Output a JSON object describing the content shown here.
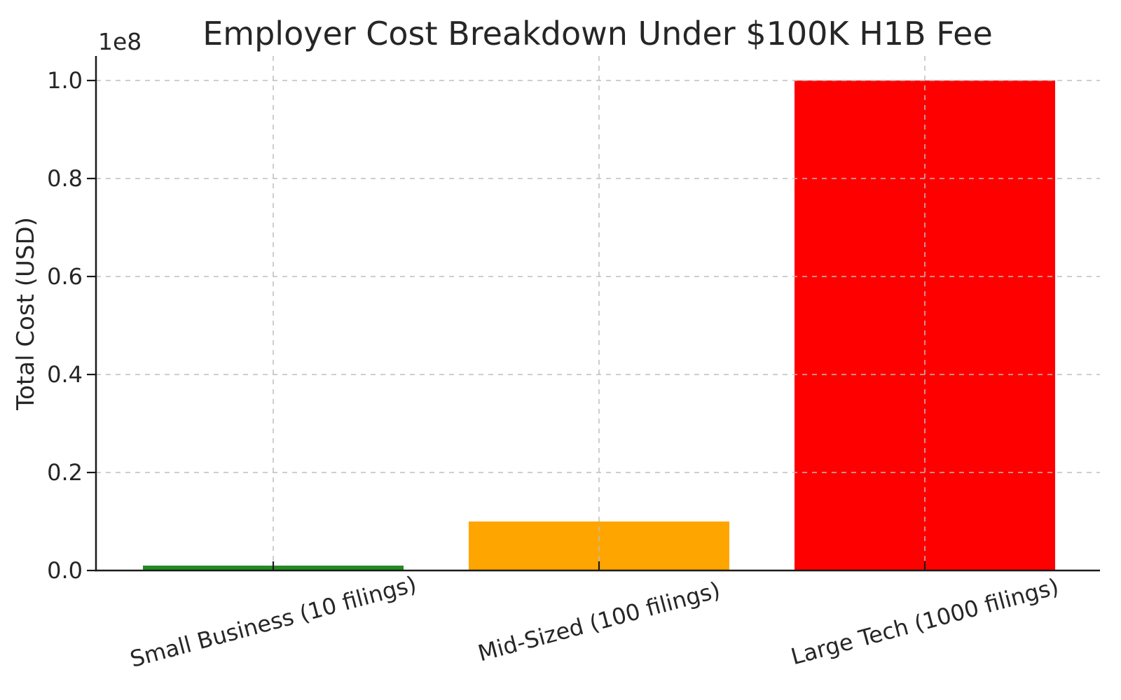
{
  "chart_data": {
    "type": "bar",
    "title": "Employer Cost Breakdown Under $100K H1B Fee",
    "xlabel": "",
    "ylabel": "Total Cost (USD)",
    "offset_text": "1e8",
    "categories": [
      "Small Business (10 filings)",
      "Mid-Sized (100 filings)",
      "Large Tech (1000 filings)"
    ],
    "values": [
      1000000,
      10000000,
      100000000
    ],
    "bar_colors": [
      "#228B22",
      "#FFA500",
      "#FF0000"
    ],
    "ytick_values": [
      0,
      20000000,
      40000000,
      60000000,
      80000000,
      100000000
    ],
    "ytick_labels": [
      "0.0",
      "0.2",
      "0.4",
      "0.6",
      "0.8",
      "1.0"
    ],
    "ylim": [
      0,
      105000000
    ],
    "grid": true,
    "grid_style": "dashed",
    "grid_position": "above-bars",
    "legend": null,
    "xtick_rotation_deg": 15,
    "colors": {
      "grid": "#bdbdbd",
      "axis": "#1a1a1a",
      "text": "#262626",
      "background": "#ffffff"
    }
  }
}
